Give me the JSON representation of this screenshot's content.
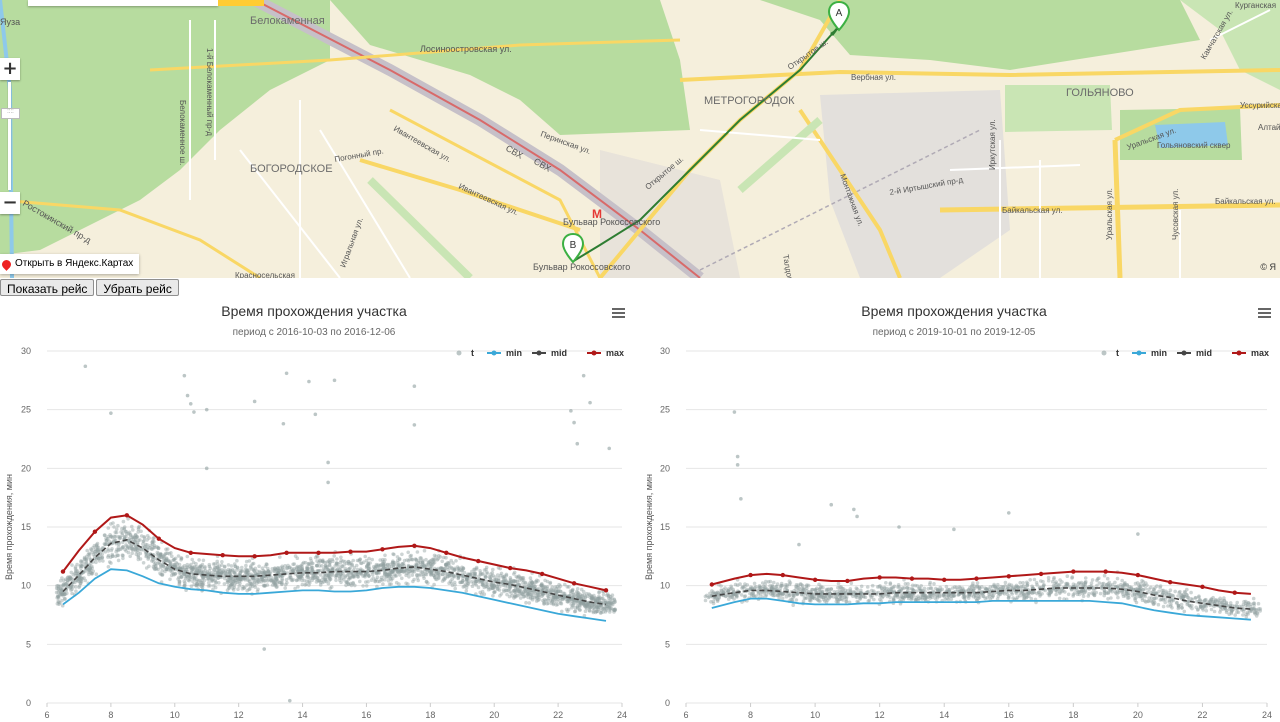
{
  "map": {
    "labels": [
      "Белокаменная",
      "Лосиноостровская ул.",
      "Перинская ул.",
      "СВХ",
      "СВХ",
      "МЕТРОГОРОДОК",
      "ГОЛЬЯНОВО",
      "БОГОРОДСКОЕ",
      "Погонный пр.",
      "Ивантеевская ул.",
      "Ивантеевская ул.",
      "Открытое ш.",
      "Открытое ш.",
      "Вербная ул.",
      "Монтажная ул.",
      "2-й Иртышский пр-д",
      "Иркутская ул.",
      "Байкальская ул.",
      "Байкальская ул.",
      "Уральская ул.",
      "Уральская ул.",
      "Уссурийская ул.",
      "Алтайская",
      "Гольяновский сквер",
      "Ростокинский пр-д",
      "Бульвар Рокоссовского",
      "Бульвар Рокоссовского",
      "Игральная ул.",
      "Яуза",
      "1-й Белокаменный пр-д",
      "Белокаменное ш.",
      "Красносельская",
      "Камчатская ул.",
      "Чусовская ул.",
      "Талдомская ул.",
      "Курганская"
    ],
    "marker_a": "A",
    "marker_b": "B",
    "open_link": "Открыть в Яндекс.Картах",
    "copyright": "© Я",
    "zoom_in": "+",
    "zoom_out": "−"
  },
  "buttons": {
    "show": "Показать рейс",
    "hide": "Убрать рейс"
  },
  "colors": {
    "t": "#90a0a0",
    "min": "#3aa8d8",
    "mid": "#454545",
    "max": "#b01818"
  },
  "chart_data": [
    {
      "type": "scatter",
      "title": "Время прохождения участка",
      "subtitle": "период с 2016-10-03 по 2016-12-06",
      "ylabel": "Время прохождения, мин",
      "xlabel": "",
      "xlim": [
        6,
        24
      ],
      "ylim": [
        0,
        30
      ],
      "xticks": [
        "6",
        "8",
        "10",
        "12",
        "14",
        "16",
        "18",
        "20",
        "22",
        "24"
      ],
      "yticks": [
        "0",
        "5",
        "10",
        "15",
        "20",
        "25",
        "30"
      ],
      "legend": [
        "t",
        "min",
        "mid",
        "max"
      ],
      "legend_position": "top-right",
      "grid": true,
      "x": [
        6.5,
        7.0,
        7.5,
        8.0,
        8.5,
        9.0,
        9.5,
        10.0,
        10.5,
        11.0,
        11.5,
        12.0,
        12.5,
        13.0,
        13.5,
        14.0,
        14.5,
        15.0,
        15.5,
        16.0,
        16.5,
        17.0,
        17.5,
        18.0,
        18.5,
        19.0,
        19.5,
        20.0,
        20.5,
        21.0,
        21.5,
        22.0,
        22.5,
        23.0,
        23.5
      ],
      "series": [
        {
          "name": "max",
          "values": [
            11.2,
            13.0,
            14.6,
            15.8,
            16.0,
            15.2,
            14.0,
            13.2,
            12.8,
            12.7,
            12.6,
            12.5,
            12.5,
            12.6,
            12.8,
            12.8,
            12.8,
            12.8,
            12.9,
            12.9,
            13.1,
            13.3,
            13.4,
            13.2,
            12.8,
            12.4,
            12.1,
            11.8,
            11.5,
            11.3,
            11.0,
            10.6,
            10.2,
            9.9,
            9.6
          ]
        },
        {
          "name": "mid",
          "values": [
            9.5,
            10.9,
            12.4,
            13.6,
            13.9,
            13.2,
            12.2,
            11.4,
            11.0,
            10.9,
            10.8,
            10.8,
            10.8,
            10.9,
            11.0,
            11.1,
            11.1,
            11.2,
            11.2,
            11.2,
            11.3,
            11.5,
            11.6,
            11.4,
            11.2,
            10.9,
            10.6,
            10.3,
            10.1,
            9.8,
            9.5,
            9.2,
            8.9,
            8.6,
            8.4
          ]
        },
        {
          "name": "min",
          "values": [
            8.4,
            9.4,
            10.6,
            11.4,
            11.3,
            10.8,
            10.2,
            9.9,
            9.7,
            9.6,
            9.4,
            9.3,
            9.3,
            9.4,
            9.5,
            9.6,
            9.6,
            9.5,
            9.5,
            9.6,
            9.8,
            9.9,
            9.9,
            9.8,
            9.6,
            9.4,
            9.1,
            8.8,
            8.5,
            8.2,
            7.9,
            7.6,
            7.4,
            7.2,
            7.0
          ]
        }
      ],
      "t_outliers": [
        [
          7.2,
          28.7
        ],
        [
          10.3,
          27.9
        ],
        [
          13.5,
          28.1
        ],
        [
          14.2,
          27.4
        ],
        [
          15.0,
          27.5
        ],
        [
          17.5,
          27.0
        ],
        [
          22.8,
          27.9
        ],
        [
          10.4,
          26.2
        ],
        [
          10.5,
          25.5
        ],
        [
          12.5,
          25.7
        ],
        [
          23.0,
          25.6
        ],
        [
          8.0,
          24.7
        ],
        [
          10.6,
          24.8
        ],
        [
          11.0,
          25.0
        ],
        [
          13.4,
          23.8
        ],
        [
          22.4,
          24.9
        ],
        [
          22.5,
          23.9
        ],
        [
          14.4,
          24.6
        ],
        [
          17.5,
          23.7
        ],
        [
          22.6,
          22.1
        ],
        [
          23.6,
          21.7
        ],
        [
          14.8,
          20.5
        ],
        [
          14.8,
          18.8
        ],
        [
          11.0,
          20.0
        ],
        [
          12.8,
          4.6
        ],
        [
          13.6,
          0.2
        ]
      ]
    },
    {
      "type": "scatter",
      "title": "Время прохождения участка",
      "subtitle": "период с 2019-10-01 по 2019-12-05",
      "ylabel": "Время прохождения, мин",
      "xlabel": "",
      "xlim": [
        6,
        24
      ],
      "ylim": [
        0,
        30
      ],
      "xticks": [
        "6",
        "8",
        "10",
        "12",
        "14",
        "16",
        "18",
        "20",
        "22",
        "24"
      ],
      "yticks": [
        "0",
        "5",
        "10",
        "15",
        "20",
        "25",
        "30"
      ],
      "legend": [
        "t",
        "min",
        "mid",
        "max"
      ],
      "legend_position": "top-right",
      "grid": true,
      "x": [
        6.8,
        7.5,
        8.0,
        8.5,
        9.0,
        9.5,
        10.0,
        10.5,
        11.0,
        11.5,
        12.0,
        12.5,
        13.0,
        13.5,
        14.0,
        14.5,
        15.0,
        15.5,
        16.0,
        16.5,
        17.0,
        17.5,
        18.0,
        18.5,
        19.0,
        19.5,
        20.0,
        20.5,
        21.0,
        21.5,
        22.0,
        22.5,
        23.0,
        23.5
      ],
      "series": [
        {
          "name": "max",
          "values": [
            10.1,
            10.6,
            10.9,
            11.0,
            10.9,
            10.7,
            10.5,
            10.4,
            10.4,
            10.6,
            10.7,
            10.7,
            10.6,
            10.6,
            10.5,
            10.5,
            10.6,
            10.7,
            10.8,
            10.9,
            11.0,
            11.1,
            11.2,
            11.2,
            11.2,
            11.1,
            10.9,
            10.6,
            10.3,
            10.1,
            9.9,
            9.6,
            9.4,
            9.3
          ]
        },
        {
          "name": "mid",
          "values": [
            9.1,
            9.4,
            9.6,
            9.6,
            9.5,
            9.4,
            9.3,
            9.3,
            9.3,
            9.3,
            9.3,
            9.4,
            9.4,
            9.4,
            9.4,
            9.4,
            9.4,
            9.5,
            9.6,
            9.6,
            9.7,
            9.8,
            9.8,
            9.8,
            9.8,
            9.7,
            9.5,
            9.2,
            9.0,
            8.7,
            8.5,
            8.3,
            8.1,
            8.0
          ]
        },
        {
          "name": "min",
          "values": [
            8.1,
            8.6,
            8.9,
            8.9,
            8.7,
            8.5,
            8.4,
            8.4,
            8.4,
            8.5,
            8.5,
            8.6,
            8.6,
            8.6,
            8.6,
            8.6,
            8.6,
            8.7,
            8.7,
            8.7,
            8.7,
            8.7,
            8.7,
            8.7,
            8.6,
            8.5,
            8.2,
            7.9,
            7.7,
            7.5,
            7.4,
            7.3,
            7.2,
            7.1
          ]
        }
      ],
      "t_outliers": [
        [
          7.5,
          24.8
        ],
        [
          7.6,
          21.0
        ],
        [
          7.6,
          20.3
        ],
        [
          7.7,
          17.4
        ],
        [
          10.5,
          16.9
        ],
        [
          11.2,
          16.5
        ],
        [
          11.3,
          15.9
        ],
        [
          12.6,
          15.0
        ],
        [
          14.3,
          14.8
        ],
        [
          16.0,
          16.2
        ],
        [
          20.0,
          14.4
        ],
        [
          9.5,
          13.5
        ]
      ]
    }
  ]
}
